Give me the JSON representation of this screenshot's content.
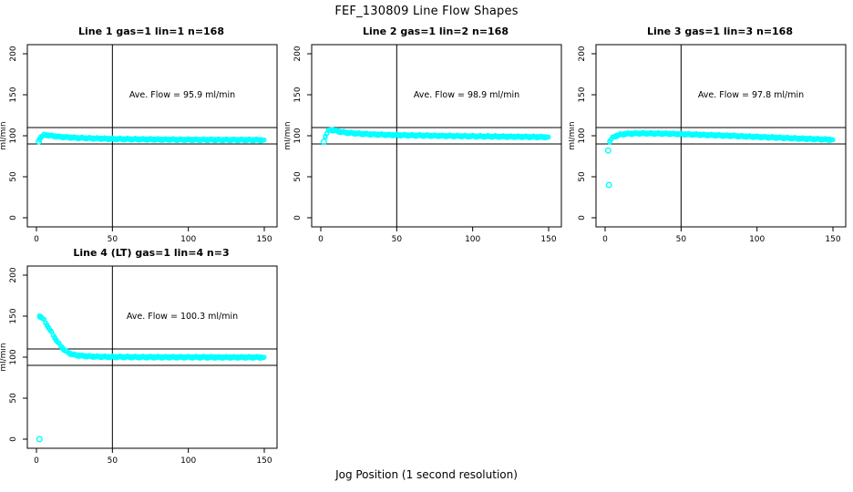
{
  "page": {
    "title": "FEF_130809  Line Flow Shapes",
    "xlabel": "Jog Position (1 second resolution)",
    "background": "#ffffff",
    "point_color": "#00ffff",
    "line_color": "#000000"
  },
  "chart_data": [
    {
      "type": "scatter",
      "title": "Line 1 gas=1 lin=1 n=168",
      "line": 1,
      "gas": 1,
      "lin": 1,
      "n": 168,
      "ylabel": "ml/min",
      "annotation": "Ave. Flow =  95.9  ml/min",
      "ave_flow": 95.9,
      "x_ticks": [
        0,
        50,
        100,
        150
      ],
      "y_ticks": [
        0,
        50,
        100,
        150,
        200
      ],
      "ylim": [
        0,
        200
      ],
      "xlim": [
        0,
        155
      ],
      "ref_hlines": [
        110,
        90
      ],
      "ref_vline": 50,
      "grid": false,
      "point_style": "open-circle",
      "profile": [
        [
          2,
          96
        ],
        [
          3,
          98.5
        ],
        [
          4,
          100
        ],
        [
          5,
          100.8
        ],
        [
          7,
          100.8
        ],
        [
          10,
          100
        ],
        [
          14,
          99
        ],
        [
          20,
          98.2
        ],
        [
          28,
          97.4
        ],
        [
          38,
          96.8
        ],
        [
          50,
          96.2
        ],
        [
          65,
          95.8
        ],
        [
          85,
          95.4
        ],
        [
          110,
          95.1
        ],
        [
          130,
          95
        ],
        [
          150,
          94.9
        ]
      ],
      "outliers": [
        [
          1.5,
          93
        ]
      ]
    },
    {
      "type": "scatter",
      "title": "Line 2 gas=1 lin=2 n=168",
      "line": 2,
      "gas": 1,
      "lin": 2,
      "n": 168,
      "ylabel": "ml/min",
      "annotation": "Ave. Flow =  98.9  ml/min",
      "ave_flow": 98.9,
      "x_ticks": [
        0,
        50,
        100,
        150
      ],
      "y_ticks": [
        0,
        50,
        100,
        150,
        200
      ],
      "ylim": [
        0,
        200
      ],
      "xlim": [
        0,
        155
      ],
      "ref_hlines": [
        110,
        90
      ],
      "ref_vline": 50,
      "grid": false,
      "point_style": "open-circle",
      "profile": [
        [
          3,
          99
        ],
        [
          4,
          103
        ],
        [
          5,
          106
        ],
        [
          6,
          107.3
        ],
        [
          8,
          107
        ],
        [
          11,
          105.5
        ],
        [
          15,
          104.3
        ],
        [
          20,
          103.3
        ],
        [
          27,
          102.4
        ],
        [
          35,
          101.7
        ],
        [
          45,
          101.1
        ],
        [
          60,
          100.5
        ],
        [
          80,
          99.9
        ],
        [
          100,
          99.4
        ],
        [
          125,
          98.9
        ],
        [
          150,
          98.4
        ]
      ],
      "outliers": [
        [
          2,
          92.5
        ]
      ]
    },
    {
      "type": "scatter",
      "title": "Line 3 gas=1 lin=3 n=168",
      "line": 3,
      "gas": 1,
      "lin": 3,
      "n": 168,
      "ylabel": "ml/min",
      "annotation": "Ave. Flow =  97.8  ml/min",
      "ave_flow": 97.8,
      "x_ticks": [
        0,
        50,
        100,
        150
      ],
      "y_ticks": [
        0,
        50,
        100,
        150,
        200
      ],
      "ylim": [
        0,
        200
      ],
      "xlim": [
        0,
        155
      ],
      "ref_hlines": [
        110,
        90
      ],
      "ref_vline": 50,
      "grid": false,
      "point_style": "open-circle",
      "profile": [
        [
          3,
          93
        ],
        [
          4,
          96
        ],
        [
          6,
          99
        ],
        [
          9,
          101
        ],
        [
          13,
          102.3
        ],
        [
          18,
          102.8
        ],
        [
          25,
          103
        ],
        [
          40,
          102.6
        ],
        [
          55,
          101.8
        ],
        [
          70,
          100.8
        ],
        [
          85,
          99.8
        ],
        [
          100,
          98.7
        ],
        [
          115,
          97.6
        ],
        [
          130,
          96.5
        ],
        [
          150,
          95.2
        ]
      ],
      "outliers": [
        [
          2,
          82
        ],
        [
          2.5,
          40
        ]
      ]
    },
    {
      "type": "scatter",
      "title": "Line 4 (LT) gas=1 lin=4 n=3",
      "line": 4,
      "gas": 1,
      "lin": 4,
      "n": 3,
      "ylabel": "ml/min",
      "annotation": "Ave. Flow =  100.3  ml/min",
      "ave_flow": 100.3,
      "x_ticks": [
        0,
        50,
        100,
        150
      ],
      "y_ticks": [
        0,
        50,
        100,
        150,
        200
      ],
      "ylim": [
        0,
        200
      ],
      "xlim": [
        0,
        155
      ],
      "ref_hlines": [
        110,
        90
      ],
      "ref_vline": 50,
      "grid": false,
      "point_style": "open-circle",
      "profile": [
        [
          2,
          150
        ],
        [
          3,
          149
        ],
        [
          4,
          147.5
        ],
        [
          5,
          145
        ],
        [
          6,
          142
        ],
        [
          7,
          139
        ],
        [
          8,
          136
        ],
        [
          9,
          133
        ],
        [
          10,
          130
        ],
        [
          11,
          127
        ],
        [
          12,
          124
        ],
        [
          13,
          121
        ],
        [
          14,
          118.5
        ],
        [
          15,
          116
        ],
        [
          16,
          113.5
        ],
        [
          17,
          111.5
        ],
        [
          18,
          109.5
        ],
        [
          19,
          108
        ],
        [
          20,
          106.5
        ],
        [
          22,
          104.5
        ],
        [
          24,
          103.3
        ],
        [
          26,
          102.5
        ],
        [
          29,
          101.8
        ],
        [
          33,
          101.2
        ],
        [
          38,
          100.8
        ],
        [
          45,
          100.5
        ],
        [
          55,
          100.3
        ],
        [
          70,
          100.1
        ],
        [
          90,
          100
        ],
        [
          120,
          99.9
        ],
        [
          150,
          99.8
        ]
      ],
      "outliers": [
        [
          2,
          0
        ]
      ]
    }
  ]
}
